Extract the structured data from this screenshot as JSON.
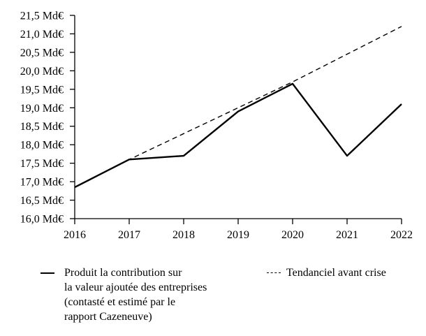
{
  "chart_data": {
    "type": "line",
    "title": "",
    "xlabel": "",
    "ylabel": "",
    "grid": false,
    "legend_position": "bottom",
    "x": [
      2016,
      2017,
      2018,
      2019,
      2020,
      2021,
      2022
    ],
    "x_tick_labels": [
      "2016",
      "2017",
      "2018",
      "2019",
      "2020",
      "2021",
      "2022"
    ],
    "ylim": [
      16.0,
      21.5
    ],
    "y_tick_step": 0.5,
    "y_ticks": [
      {
        "value": 16.0,
        "label": "16,0 Md€"
      },
      {
        "value": 16.5,
        "label": "16,5 Md€"
      },
      {
        "value": 17.0,
        "label": "17,0 Md€"
      },
      {
        "value": 17.5,
        "label": "17,5 Md€"
      },
      {
        "value": 18.0,
        "label": "18,0 Md€"
      },
      {
        "value": 18.5,
        "label": "18,5 Md€"
      },
      {
        "value": 19.0,
        "label": "19,0 Md€"
      },
      {
        "value": 19.5,
        "label": "19,5 Md€"
      },
      {
        "value": 20.0,
        "label": "20,0 Md€"
      },
      {
        "value": 20.5,
        "label": "20,5 Md€"
      },
      {
        "value": 21.0,
        "label": "21,0 Md€"
      },
      {
        "value": 21.5,
        "label": "21,5 Md€"
      }
    ],
    "series": [
      {
        "name": "Tendanciel avant crise",
        "style": "dashed",
        "color": "#000000",
        "values": [
          16.85,
          17.6,
          18.3,
          19.0,
          19.7,
          20.45,
          21.2
        ]
      },
      {
        "name": "Produit la contribution sur la valeur ajoutée des entreprises (contasté et estimé par le rapport Cazeneuve)",
        "style": "solid",
        "color": "#000000",
        "values": [
          16.85,
          17.6,
          17.7,
          18.9,
          19.65,
          17.7,
          19.1
        ]
      }
    ]
  },
  "legend": {
    "items": [
      {
        "label": "Produit la contribution sur\nla valeur ajoutée des entreprises\n(contasté et estimé par le\nrapport Cazeneuve)",
        "marker": "solid-line"
      },
      {
        "label": "Tendanciel avant crise",
        "marker": "dashed-line"
      }
    ]
  },
  "colors": {
    "line": "#000000",
    "background": "#ffffff"
  }
}
